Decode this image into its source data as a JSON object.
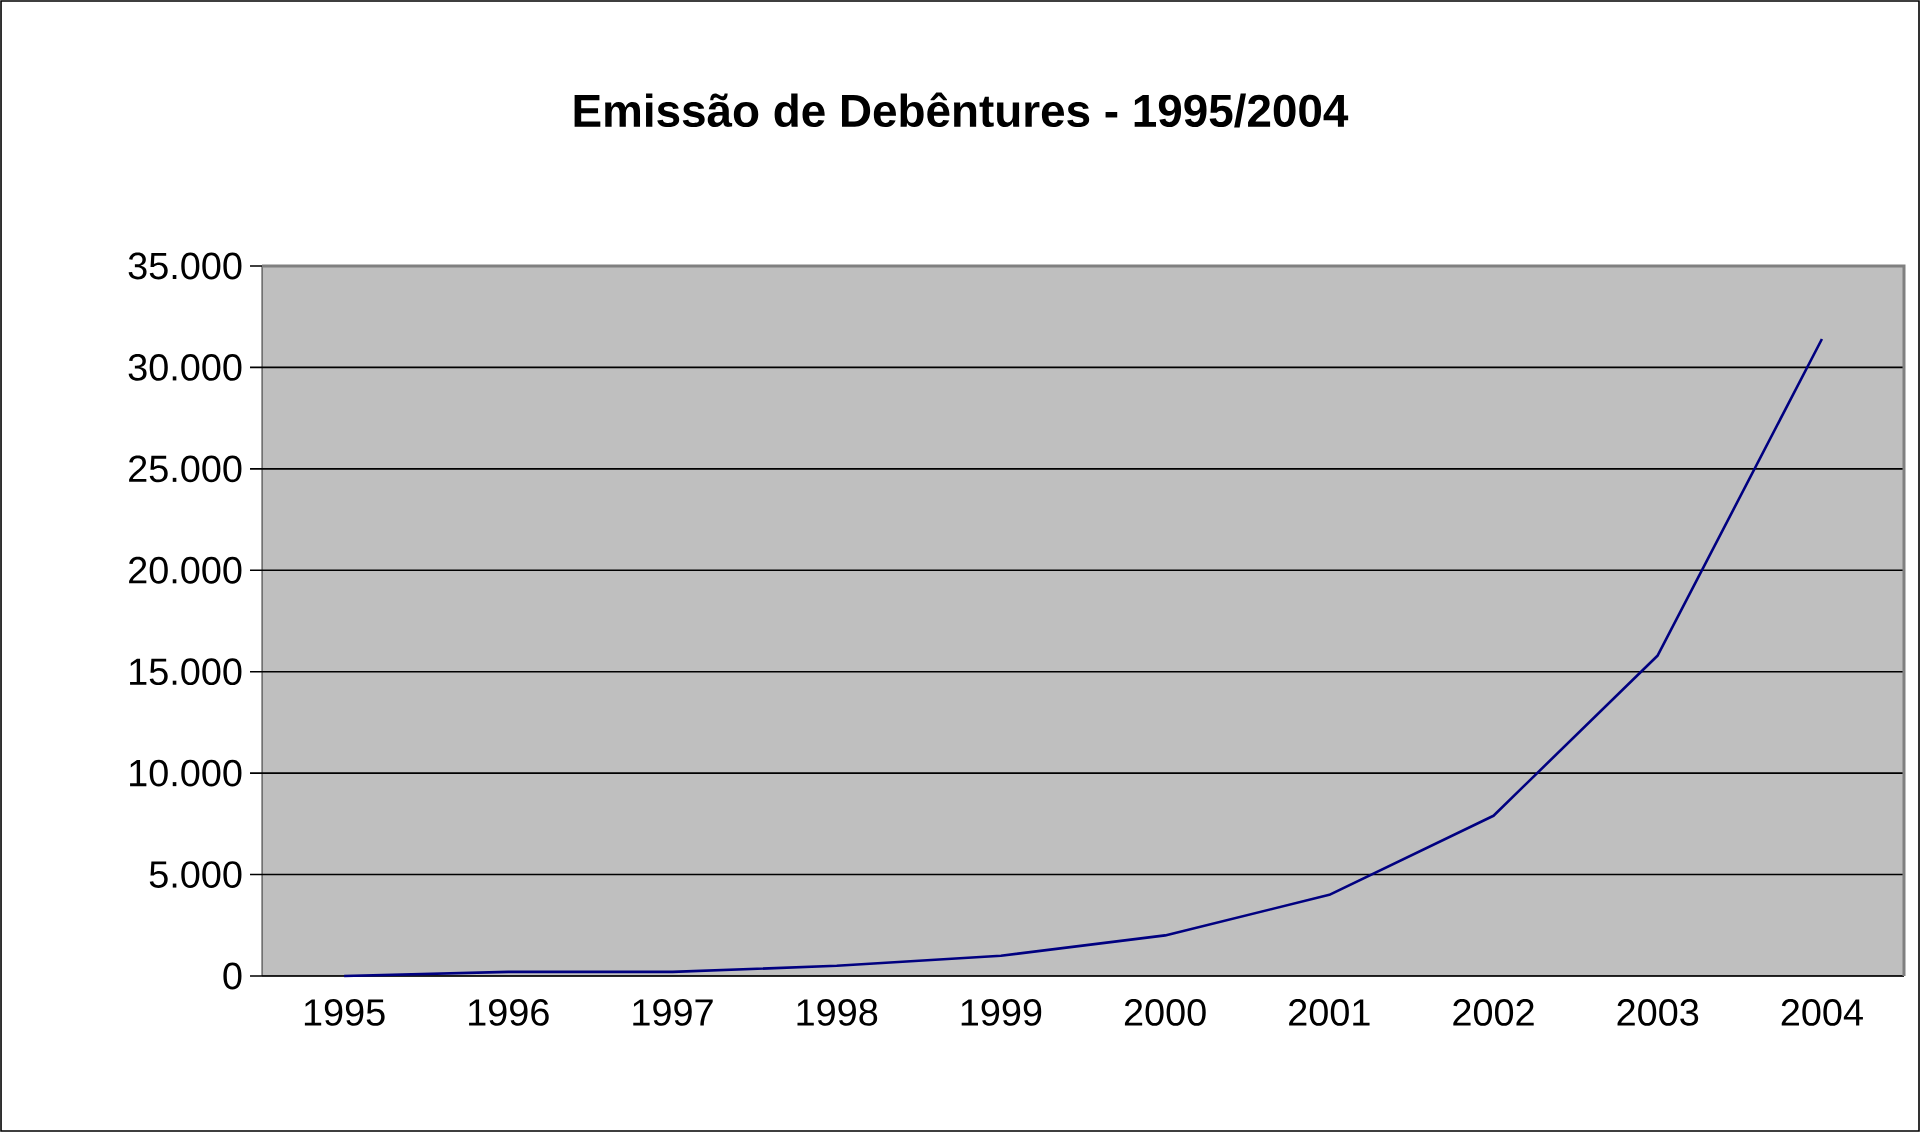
{
  "chart_data": {
    "type": "line",
    "title": "Emissão de Debêntures - 1995/2004",
    "categories": [
      "1995",
      "1996",
      "1997",
      "1998",
      "1999",
      "2000",
      "2001",
      "2002",
      "2003",
      "2004"
    ],
    "series": [
      {
        "color": "#000080",
        "values": [
          0,
          200,
          200,
          500,
          1000,
          2000,
          4000,
          7900,
          15800,
          31400
        ]
      }
    ],
    "ylim": [
      0,
      35000
    ],
    "yticks": [
      {
        "value": 0,
        "label": "0"
      },
      {
        "value": 5000,
        "label": "5.000"
      },
      {
        "value": 10000,
        "label": "10.000"
      },
      {
        "value": 15000,
        "label": "15.000"
      },
      {
        "value": 20000,
        "label": "20.000"
      },
      {
        "value": 25000,
        "label": "25.000"
      },
      {
        "value": 30000,
        "label": "30.000"
      },
      {
        "value": 35000,
        "label": "35.000"
      }
    ],
    "grid": "y",
    "marker": "none",
    "line_style": "solid"
  }
}
